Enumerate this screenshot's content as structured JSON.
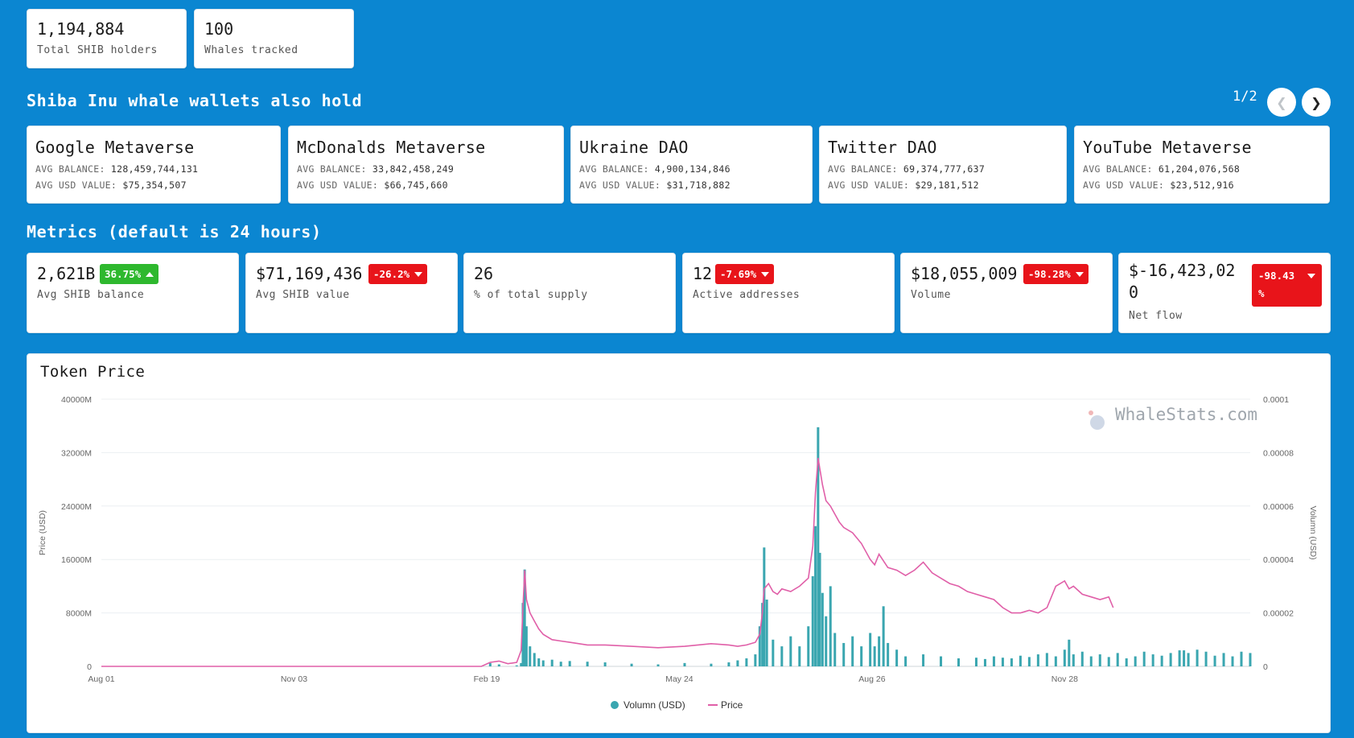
{
  "summary": {
    "holders": {
      "value": "1,194,884",
      "label": "Total SHIB holders"
    },
    "whales": {
      "value": "100",
      "label": "Whales tracked"
    }
  },
  "holdings_section": {
    "title": "Shiba Inu whale wallets also hold",
    "pager": "1/2",
    "avg_balance_key": "AVG BALANCE:",
    "avg_usd_key": "AVG USD VALUE:",
    "items": [
      {
        "name": "Google Metaverse",
        "avg_balance": "128,459,744,131",
        "avg_usd": "$75,354,507"
      },
      {
        "name": "McDonalds Metaverse",
        "avg_balance": "33,842,458,249",
        "avg_usd": "$66,745,660"
      },
      {
        "name": "Ukraine DAO",
        "avg_balance": "4,900,134,846",
        "avg_usd": "$31,718,882"
      },
      {
        "name": "Twitter DAO",
        "avg_balance": "69,374,777,637",
        "avg_usd": "$29,181,512"
      },
      {
        "name": "YouTube Metaverse",
        "avg_balance": "61,204,076,568",
        "avg_usd": "$23,512,916"
      }
    ]
  },
  "metrics_section": {
    "title": "Metrics (default is 24 hours)",
    "items": [
      {
        "value": "2,621B",
        "change": "36.75%",
        "direction": "up",
        "label": "Avg SHIB balance"
      },
      {
        "value": "$71,169,436",
        "change": "-26.2%",
        "direction": "down",
        "label": "Avg SHIB value"
      },
      {
        "value": "26",
        "change": "",
        "direction": "",
        "label": "% of total supply"
      },
      {
        "value": "12",
        "change": "-7.69%",
        "direction": "down",
        "label": "Active addresses"
      },
      {
        "value": "$18,055,009",
        "change": "-98.28%",
        "direction": "down",
        "label": "Volume"
      },
      {
        "value_line1": "$-16,423,02",
        "value_line2": "0",
        "change_line1": "-98.43",
        "change_line2": "%",
        "direction": "down",
        "label": "Net flow"
      }
    ]
  },
  "chart": {
    "title": "Token Price",
    "watermark": "WhaleStats.com",
    "colors": {
      "volume": "#3aa6b0",
      "price": "#e05fa8"
    }
  },
  "chart_data": {
    "type": "line",
    "x_ticks": [
      "Aug 01",
      "Nov 03",
      "Feb 19",
      "May 24",
      "Aug 26",
      "Nov 28"
    ],
    "y_left_label": "Price (USD)",
    "y_left_ticks": [
      "0",
      "8000M",
      "16000M",
      "24000M",
      "32000M",
      "40000M"
    ],
    "y_left_range": [
      0,
      40000
    ],
    "y_right_label": "Volumn (USD)",
    "y_right_ticks": [
      "0",
      "0.00002",
      "0.00004",
      "0.00006",
      "0.00008",
      "0.0001"
    ],
    "y_right_range": [
      0,
      0.0001
    ],
    "legend": [
      "Volumn (USD)",
      "Price"
    ],
    "series": [
      {
        "name": "Volumn (USD)",
        "kind": "bar",
        "points": [
          [
            0.0,
            0
          ],
          [
            0.43,
            0
          ],
          [
            0.44,
            500
          ],
          [
            0.45,
            300
          ],
          [
            0.47,
            150
          ],
          [
            0.475,
            500
          ],
          [
            0.477,
            9500
          ],
          [
            0.479,
            14500
          ],
          [
            0.481,
            6000
          ],
          [
            0.485,
            3000
          ],
          [
            0.49,
            2000
          ],
          [
            0.495,
            1200
          ],
          [
            0.5,
            900
          ],
          [
            0.51,
            1000
          ],
          [
            0.52,
            700
          ],
          [
            0.53,
            800
          ],
          [
            0.55,
            700
          ],
          [
            0.57,
            600
          ],
          [
            0.6,
            400
          ],
          [
            0.63,
            300
          ],
          [
            0.66,
            500
          ],
          [
            0.69,
            400
          ],
          [
            0.71,
            600
          ],
          [
            0.72,
            900
          ],
          [
            0.73,
            1200
          ],
          [
            0.74,
            1800
          ],
          [
            0.745,
            6000
          ],
          [
            0.748,
            9500
          ],
          [
            0.75,
            17800
          ],
          [
            0.753,
            10000
          ],
          [
            0.76,
            4000
          ],
          [
            0.77,
            3000
          ],
          [
            0.78,
            4500
          ],
          [
            0.79,
            3000
          ],
          [
            0.8,
            6000
          ],
          [
            0.805,
            13500
          ],
          [
            0.808,
            21000
          ],
          [
            0.811,
            35800
          ],
          [
            0.813,
            17000
          ],
          [
            0.816,
            11000
          ],
          [
            0.82,
            7500
          ],
          [
            0.825,
            12000
          ],
          [
            0.83,
            5000
          ],
          [
            0.84,
            3500
          ],
          [
            0.85,
            4500
          ],
          [
            0.86,
            3000
          ],
          [
            0.87,
            5000
          ],
          [
            0.875,
            3000
          ],
          [
            0.88,
            4500
          ],
          [
            0.885,
            9000
          ],
          [
            0.89,
            3500
          ],
          [
            0.9,
            2500
          ],
          [
            0.91,
            1500
          ],
          [
            0.93,
            1800
          ],
          [
            0.95,
            1500
          ],
          [
            0.97,
            1200
          ],
          [
            0.99,
            1300
          ],
          [
            1.0,
            1100
          ],
          [
            1.01,
            1500
          ],
          [
            1.02,
            1300
          ],
          [
            1.03,
            1200
          ],
          [
            1.04,
            1600
          ],
          [
            1.05,
            1400
          ],
          [
            1.06,
            1800
          ],
          [
            1.07,
            2000
          ],
          [
            1.08,
            1500
          ],
          [
            1.09,
            2500
          ],
          [
            1.095,
            4000
          ],
          [
            1.1,
            1800
          ],
          [
            1.11,
            2200
          ],
          [
            1.12,
            1500
          ],
          [
            1.13,
            1800
          ],
          [
            1.14,
            1400
          ],
          [
            1.15,
            2000
          ],
          [
            1.16,
            1200
          ],
          [
            1.17,
            1500
          ],
          [
            1.18,
            2200
          ],
          [
            1.19,
            1800
          ],
          [
            1.2,
            1600
          ],
          [
            1.21,
            2000
          ],
          [
            1.22,
            2400
          ],
          [
            1.225,
            2400
          ],
          [
            1.23,
            2000
          ],
          [
            1.24,
            2500
          ],
          [
            1.25,
            2200
          ],
          [
            1.26,
            1600
          ],
          [
            1.27,
            2000
          ],
          [
            1.28,
            1500
          ],
          [
            1.29,
            2200
          ],
          [
            1.3,
            2000
          ]
        ]
      },
      {
        "name": "Price",
        "kind": "line",
        "points": [
          [
            0.0,
            0
          ],
          [
            0.43,
            0
          ],
          [
            0.44,
            1.5e-06
          ],
          [
            0.45,
            2e-06
          ],
          [
            0.46,
            1e-06
          ],
          [
            0.47,
            1.5e-06
          ],
          [
            0.475,
            6e-06
          ],
          [
            0.477,
            2.2e-05
          ],
          [
            0.479,
            3.6e-05
          ],
          [
            0.481,
            2.5e-05
          ],
          [
            0.485,
            2e-05
          ],
          [
            0.49,
            1.7e-05
          ],
          [
            0.495,
            1.4e-05
          ],
          [
            0.5,
            1.2e-05
          ],
          [
            0.51,
            1e-05
          ],
          [
            0.52,
            9.5e-06
          ],
          [
            0.53,
            9e-06
          ],
          [
            0.55,
            8e-06
          ],
          [
            0.57,
            8e-06
          ],
          [
            0.6,
            7.5e-06
          ],
          [
            0.63,
            7e-06
          ],
          [
            0.66,
            7.5e-06
          ],
          [
            0.69,
            8.5e-06
          ],
          [
            0.71,
            8e-06
          ],
          [
            0.72,
            7.5e-06
          ],
          [
            0.73,
            8e-06
          ],
          [
            0.74,
            9e-06
          ],
          [
            0.745,
            1.2e-05
          ],
          [
            0.748,
            2e-05
          ],
          [
            0.75,
            2.9e-05
          ],
          [
            0.755,
            3.1e-05
          ],
          [
            0.76,
            2.8e-05
          ],
          [
            0.765,
            2.7e-05
          ],
          [
            0.77,
            2.9e-05
          ],
          [
            0.78,
            2.8e-05
          ],
          [
            0.79,
            3e-05
          ],
          [
            0.8,
            3.3e-05
          ],
          [
            0.805,
            4.5e-05
          ],
          [
            0.808,
            6.5e-05
          ],
          [
            0.811,
            7.8e-05
          ],
          [
            0.813,
            7.4e-05
          ],
          [
            0.816,
            6.8e-05
          ],
          [
            0.82,
            6.2e-05
          ],
          [
            0.825,
            6e-05
          ],
          [
            0.83,
            5.7e-05
          ],
          [
            0.835,
            5.4e-05
          ],
          [
            0.84,
            5.2e-05
          ],
          [
            0.85,
            5e-05
          ],
          [
            0.86,
            4.6e-05
          ],
          [
            0.87,
            4e-05
          ],
          [
            0.875,
            3.8e-05
          ],
          [
            0.88,
            4.2e-05
          ],
          [
            0.89,
            3.7e-05
          ],
          [
            0.9,
            3.6e-05
          ],
          [
            0.91,
            3.4e-05
          ],
          [
            0.92,
            3.6e-05
          ],
          [
            0.93,
            3.9e-05
          ],
          [
            0.94,
            3.5e-05
          ],
          [
            0.95,
            3.3e-05
          ],
          [
            0.96,
            3.1e-05
          ],
          [
            0.97,
            3e-05
          ],
          [
            0.98,
            2.8e-05
          ],
          [
            0.99,
            2.7e-05
          ],
          [
            1.0,
            2.6e-05
          ],
          [
            1.01,
            2.5e-05
          ],
          [
            1.02,
            2.2e-05
          ],
          [
            1.03,
            2e-05
          ],
          [
            1.04,
            2e-05
          ],
          [
            1.05,
            2.1e-05
          ],
          [
            1.06,
            2e-05
          ],
          [
            1.07,
            2.2e-05
          ],
          [
            1.08,
            3e-05
          ],
          [
            1.09,
            3.2e-05
          ],
          [
            1.095,
            2.9e-05
          ],
          [
            1.1,
            3e-05
          ],
          [
            1.11,
            2.7e-05
          ],
          [
            1.12,
            2.6e-05
          ],
          [
            1.13,
            2.5e-05
          ],
          [
            1.14,
            2.6e-05
          ],
          [
            1.145,
            2.2e-05
          ]
        ]
      }
    ]
  }
}
